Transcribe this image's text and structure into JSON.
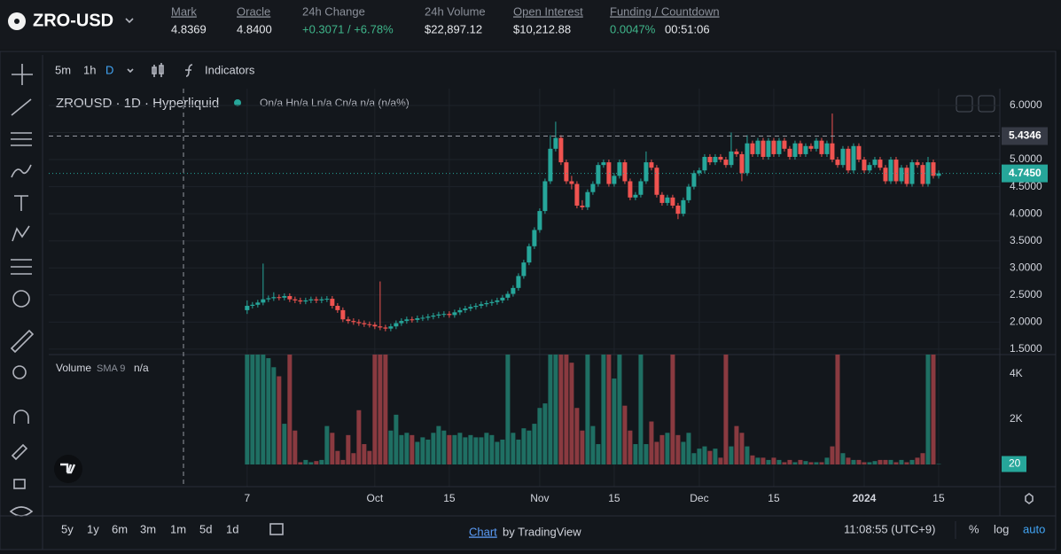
{
  "header": {
    "symbol": "ZRO-USD",
    "stats": [
      {
        "label": "Mark",
        "value": "4.8369"
      },
      {
        "label": "Oracle",
        "value": "4.8400"
      },
      {
        "label": "24h Change",
        "value": "+0.3071 / +6.78%"
      },
      {
        "label": "24h Volume",
        "value": "$22,897.12"
      },
      {
        "label": "Open Interest",
        "value": "$10,212.88"
      },
      {
        "label": "Funding / Countdown",
        "value": "0.0047%",
        "countdown": "00:51:06"
      }
    ]
  },
  "toolbar": {
    "intervals": [
      "5m",
      "1h",
      "D"
    ],
    "indicators": "Indicators"
  },
  "chart_data": {
    "type": "candlestick",
    "title": "ZROUSD · 1D · Hyperliquid",
    "ohlc_legend": "On/a Hn/a Ln/a Cn/a n/a (n/a%)",
    "up_color": "#26a69a",
    "down_color": "#ef5350",
    "grid": true,
    "xlim": [
      -37.3,
      141.5
    ],
    "xticks": [
      {
        "value": 0,
        "label": "7"
      },
      {
        "value": 24,
        "label": "Oct"
      },
      {
        "value": 38,
        "label": "15"
      },
      {
        "value": 55,
        "label": "Nov"
      },
      {
        "value": 69,
        "label": "15"
      },
      {
        "value": 85,
        "label": "Dec"
      },
      {
        "value": 99,
        "label": "15"
      },
      {
        "value": 116,
        "label": "2024"
      },
      {
        "value": 130,
        "label": "15"
      }
    ],
    "ylim": [
      1.4,
      6.31
    ],
    "yticks": [
      {
        "value": 1.5,
        "label": "1.5000"
      },
      {
        "value": 2,
        "label": "2.0000"
      },
      {
        "value": 2.5,
        "label": "2.5000"
      },
      {
        "value": 3,
        "label": "3.0000"
      },
      {
        "value": 3.5,
        "label": "3.5000"
      },
      {
        "value": 4,
        "label": "4.0000"
      },
      {
        "value": 4.5,
        "label": "4.5000"
      },
      {
        "value": 5,
        "label": "5.0000"
      },
      {
        "value": 5.5,
        "label": "5.5000"
      },
      {
        "value": 6,
        "label": "6.0000"
      }
    ],
    "crosshair": {
      "value": 5.4346,
      "label": "5.4346"
    },
    "last_price": {
      "value": 4.745,
      "label": "4.7450"
    },
    "candles": [
      [
        2.22,
        2.4,
        2.15,
        2.3
      ],
      [
        2.3,
        2.37,
        2.25,
        2.32
      ],
      [
        2.32,
        2.41,
        2.27,
        2.36
      ],
      [
        2.36,
        3.08,
        2.31,
        2.42
      ],
      [
        2.42,
        2.49,
        2.37,
        2.44
      ],
      [
        2.44,
        2.55,
        2.39,
        2.46
      ],
      [
        2.46,
        2.51,
        2.4,
        2.45
      ],
      [
        2.45,
        2.53,
        2.4,
        2.48
      ],
      [
        2.48,
        2.53,
        2.37,
        2.42
      ],
      [
        2.42,
        2.47,
        2.35,
        2.4
      ],
      [
        2.4,
        2.45,
        2.33,
        2.38
      ],
      [
        2.38,
        2.45,
        2.33,
        2.4
      ],
      [
        2.4,
        2.47,
        2.35,
        2.42
      ],
      [
        2.42,
        2.47,
        2.35,
        2.4
      ],
      [
        2.4,
        2.47,
        2.35,
        2.42
      ],
      [
        2.42,
        2.48,
        2.37,
        2.43
      ],
      [
        2.43,
        2.48,
        2.25,
        2.3
      ],
      [
        2.3,
        2.35,
        2.17,
        2.22
      ],
      [
        2.22,
        2.27,
        2.0,
        2.05
      ],
      [
        2.05,
        2.1,
        1.97,
        2.02
      ],
      [
        2.02,
        2.07,
        1.95,
        2.0
      ],
      [
        2.0,
        2.05,
        1.93,
        1.98
      ],
      [
        1.98,
        2.03,
        1.91,
        1.96
      ],
      [
        1.96,
        2.01,
        1.9,
        1.95
      ],
      [
        1.95,
        2.0,
        1.87,
        1.92
      ],
      [
        1.92,
        2.75,
        1.85,
        1.9
      ],
      [
        1.9,
        1.95,
        1.83,
        1.88
      ],
      [
        1.88,
        1.97,
        1.83,
        1.92
      ],
      [
        1.92,
        2.03,
        1.87,
        1.98
      ],
      [
        1.98,
        2.07,
        1.93,
        2.02
      ],
      [
        2.02,
        2.1,
        1.97,
        2.05
      ],
      [
        2.05,
        2.1,
        1.99,
        2.04
      ],
      [
        2.04,
        2.12,
        1.99,
        2.07
      ],
      [
        2.07,
        2.13,
        2.02,
        2.08
      ],
      [
        2.08,
        2.15,
        2.03,
        2.1
      ],
      [
        2.1,
        2.17,
        2.05,
        2.12
      ],
      [
        2.12,
        2.19,
        2.07,
        2.14
      ],
      [
        2.14,
        2.2,
        2.09,
        2.15
      ],
      [
        2.15,
        2.2,
        2.08,
        2.13
      ],
      [
        2.13,
        2.23,
        2.08,
        2.18
      ],
      [
        2.18,
        2.27,
        2.13,
        2.22
      ],
      [
        2.22,
        2.3,
        2.17,
        2.25
      ],
      [
        2.25,
        2.33,
        2.2,
        2.28
      ],
      [
        2.28,
        2.35,
        2.23,
        2.3
      ],
      [
        2.3,
        2.38,
        2.25,
        2.33
      ],
      [
        2.33,
        2.4,
        2.28,
        2.35
      ],
      [
        2.35,
        2.42,
        2.3,
        2.37
      ],
      [
        2.37,
        2.45,
        2.32,
        2.4
      ],
      [
        2.4,
        2.5,
        2.35,
        2.45
      ],
      [
        2.45,
        2.57,
        2.4,
        2.52
      ],
      [
        2.52,
        2.68,
        2.47,
        2.63
      ],
      [
        2.63,
        2.9,
        2.58,
        2.85
      ],
      [
        2.85,
        3.15,
        2.8,
        3.1
      ],
      [
        3.1,
        3.45,
        3.05,
        3.4
      ],
      [
        3.4,
        3.75,
        3.35,
        3.7
      ],
      [
        3.7,
        4.1,
        3.65,
        4.05
      ],
      [
        4.05,
        4.65,
        4.0,
        4.6
      ],
      [
        4.6,
        5.45,
        4.55,
        5.2
      ],
      [
        5.2,
        5.7,
        5.15,
        5.4
      ],
      [
        5.4,
        5.45,
        4.9,
        4.95
      ],
      [
        4.95,
        5.0,
        4.55,
        4.6
      ],
      [
        4.6,
        4.7,
        4.45,
        4.55
      ],
      [
        4.55,
        4.6,
        4.1,
        4.15
      ],
      [
        4.15,
        4.25,
        4.07,
        4.12
      ],
      [
        4.12,
        4.45,
        4.07,
        4.4
      ],
      [
        4.4,
        4.6,
        4.35,
        4.55
      ],
      [
        4.55,
        4.95,
        4.5,
        4.9
      ],
      [
        4.9,
        5.0,
        4.85,
        4.95
      ],
      [
        4.95,
        5.0,
        4.5,
        4.55
      ],
      [
        4.55,
        4.75,
        4.5,
        4.7
      ],
      [
        4.7,
        5.0,
        4.65,
        4.95
      ],
      [
        4.95,
        5.0,
        4.55,
        4.6
      ],
      [
        4.6,
        4.65,
        4.25,
        4.3
      ],
      [
        4.3,
        4.4,
        4.25,
        4.35
      ],
      [
        4.35,
        4.65,
        4.3,
        4.6
      ],
      [
        4.6,
        5.15,
        4.55,
        4.95
      ],
      [
        4.95,
        5.0,
        4.8,
        4.85
      ],
      [
        4.85,
        4.9,
        4.3,
        4.35
      ],
      [
        4.35,
        4.4,
        4.15,
        4.2
      ],
      [
        4.2,
        4.35,
        4.15,
        4.3
      ],
      [
        4.3,
        4.35,
        4.1,
        4.15
      ],
      [
        4.15,
        4.2,
        3.9,
        4.0
      ],
      [
        4.0,
        4.3,
        3.95,
        4.25
      ],
      [
        4.25,
        4.55,
        4.2,
        4.5
      ],
      [
        4.5,
        4.8,
        4.45,
        4.75
      ],
      [
        4.75,
        4.85,
        4.7,
        4.8
      ],
      [
        4.8,
        5.1,
        4.75,
        5.05
      ],
      [
        5.05,
        5.1,
        4.9,
        4.95
      ],
      [
        4.95,
        5.1,
        4.9,
        5.05
      ],
      [
        5.05,
        5.1,
        4.95,
        5.0
      ],
      [
        5.0,
        5.05,
        4.85,
        4.9
      ],
      [
        4.9,
        5.5,
        4.85,
        5.15
      ],
      [
        5.15,
        5.2,
        5.05,
        5.1
      ],
      [
        5.1,
        5.15,
        4.6,
        4.75
      ],
      [
        4.75,
        5.45,
        4.7,
        5.3
      ],
      [
        5.3,
        5.35,
        5.05,
        5.1
      ],
      [
        5.1,
        5.4,
        5.05,
        5.35
      ],
      [
        5.35,
        5.4,
        5.0,
        5.05
      ],
      [
        5.05,
        5.4,
        5.0,
        5.35
      ],
      [
        5.35,
        5.4,
        5.05,
        5.1
      ],
      [
        5.1,
        5.4,
        5.05,
        5.35
      ],
      [
        5.35,
        5.4,
        5.15,
        5.2
      ],
      [
        5.2,
        5.25,
        5.0,
        5.05
      ],
      [
        5.05,
        5.35,
        5.0,
        5.3
      ],
      [
        5.3,
        5.35,
        5.05,
        5.1
      ],
      [
        5.1,
        5.3,
        5.05,
        5.25
      ],
      [
        5.25,
        5.3,
        5.15,
        5.2
      ],
      [
        5.2,
        5.4,
        5.15,
        5.35
      ],
      [
        5.35,
        5.4,
        5.05,
        5.1
      ],
      [
        5.1,
        5.35,
        5.05,
        5.3
      ],
      [
        5.3,
        5.85,
        4.95,
        5.0
      ],
      [
        5.0,
        5.05,
        4.85,
        4.9
      ],
      [
        4.9,
        5.25,
        4.85,
        5.2
      ],
      [
        5.2,
        5.25,
        4.75,
        4.8
      ],
      [
        4.8,
        5.3,
        4.75,
        5.25
      ],
      [
        5.25,
        5.3,
        4.95,
        5.0
      ],
      [
        5.0,
        5.05,
        4.75,
        4.8
      ],
      [
        4.8,
        4.95,
        4.75,
        4.9
      ],
      [
        4.9,
        5.05,
        4.85,
        5.0
      ],
      [
        5.0,
        5.05,
        4.8,
        4.85
      ],
      [
        4.85,
        4.9,
        4.55,
        4.6
      ],
      [
        4.6,
        5.05,
        4.55,
        5.0
      ],
      [
        5.0,
        5.05,
        4.55,
        4.6
      ],
      [
        4.6,
        4.9,
        4.55,
        4.85
      ],
      [
        4.85,
        4.9,
        4.5,
        4.55
      ],
      [
        4.55,
        5.0,
        4.5,
        4.95
      ],
      [
        4.95,
        5.0,
        4.85,
        4.9
      ],
      [
        4.9,
        4.95,
        4.5,
        4.55
      ],
      [
        4.55,
        5.05,
        4.5,
        4.95
      ],
      [
        4.95,
        5.0,
        4.65,
        4.7
      ],
      [
        4.7,
        4.8,
        4.65,
        4.745
      ]
    ],
    "volume": {
      "title": "Volume",
      "indicator": "SMA 9",
      "indicator_value": "n/a",
      "up_color": "#1f6f63",
      "down_color": "#8a3a40",
      "ylim": [
        0,
        4860
      ],
      "yticks": [
        {
          "value": 4000,
          "label": "4K"
        },
        {
          "value": 2000,
          "label": "2K"
        }
      ],
      "values": [
        5000,
        5000,
        5000,
        5000,
        4700,
        4300,
        3900,
        1800,
        5000,
        1500,
        100,
        200,
        100,
        150,
        200,
        1700,
        1400,
        600,
        200,
        1300,
        500,
        2400,
        900,
        600,
        5000,
        5000,
        5000,
        1500,
        2200,
        1300,
        1400,
        1300,
        1000,
        1200,
        1100,
        1400,
        1700,
        1500,
        1300,
        1300,
        1400,
        1200,
        1300,
        1200,
        1200,
        1400,
        1300,
        1000,
        1100,
        5000,
        1400,
        1100,
        1600,
        1500,
        1800,
        2500,
        2700,
        5000,
        5000,
        5000,
        5000,
        4500,
        2500,
        1500,
        5000,
        1700,
        900,
        5000,
        5000,
        3800,
        5000,
        2600,
        1500,
        900,
        5000,
        900,
        1900,
        1000,
        1300,
        1400,
        5000,
        1300,
        1000,
        1400,
        500,
        700,
        800,
        600,
        700,
        300,
        5000,
        800,
        1700,
        1400,
        800,
        400,
        300,
        300,
        200,
        300,
        200,
        100,
        200,
        100,
        200,
        150,
        100,
        100,
        100,
        300,
        800,
        5000,
        500,
        300,
        200,
        200,
        100,
        100,
        150,
        200,
        200,
        200,
        100,
        200,
        100,
        200,
        300,
        500,
        5000,
        5000,
        20
      ]
    }
  },
  "footer": {
    "ranges": [
      "5y",
      "1y",
      "6m",
      "3m",
      "1m",
      "5d",
      "1d"
    ],
    "credit_link": "Chart",
    "credit_text": "by TradingView",
    "clock": "11:08:55 (UTC+9)",
    "options": [
      "%",
      "log",
      "auto"
    ]
  }
}
